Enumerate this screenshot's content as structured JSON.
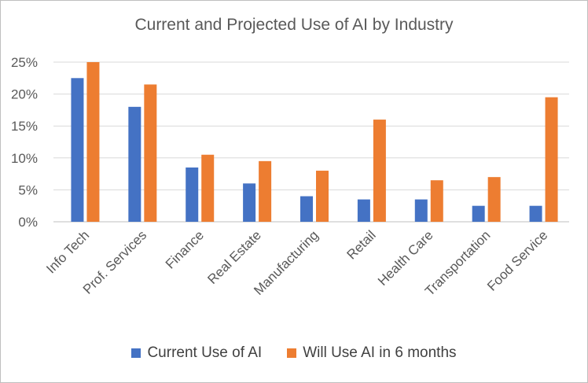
{
  "chart_data": {
    "type": "bar",
    "title": "Current and Projected Use of AI by Industry",
    "xlabel": "",
    "ylabel": "",
    "ylim": [
      0,
      25
    ],
    "yticks": [
      "0%",
      "5%",
      "10%",
      "15%",
      "20%",
      "25%"
    ],
    "ytick_values": [
      0,
      5,
      10,
      15,
      20,
      25
    ],
    "grid": true,
    "legend_position": "bottom",
    "categories": [
      "Info Tech",
      "Prof. Services",
      "Finance",
      "Real Estate",
      "Manufacturing",
      "Retail",
      "Health Care",
      "Transportation",
      "Food Service"
    ],
    "series": [
      {
        "name": "Current Use of AI",
        "color": "#4472C4",
        "values": [
          22.5,
          18,
          8.5,
          6,
          4,
          3.5,
          3.5,
          2.5,
          2.5
        ]
      },
      {
        "name": "Will Use AI in 6 months",
        "color": "#ED7D31",
        "values": [
          25,
          21.5,
          10.5,
          9.5,
          8,
          16,
          6.5,
          7,
          19.5
        ]
      }
    ]
  }
}
